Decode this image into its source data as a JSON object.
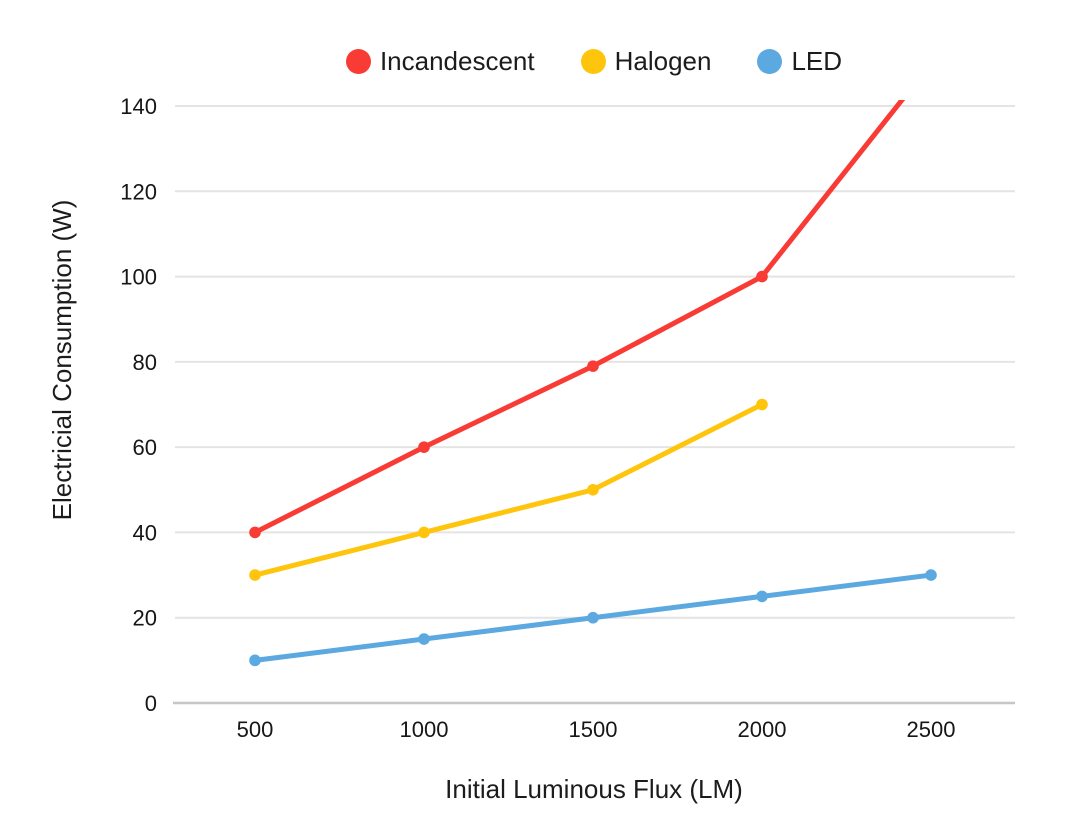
{
  "page": {
    "background_color": "#ffffff",
    "text_color": "#1c1c1c"
  },
  "legend": {
    "position": "top-center",
    "items": [
      {
        "label": "Incandescent",
        "color": "#F93B36"
      },
      {
        "label": "Halogen",
        "color": "#FFC40C"
      },
      {
        "label": "LED",
        "color": "#5BA9E0"
      }
    ]
  },
  "chart_data": {
    "type": "line",
    "title": "",
    "xlabel": "Initial Luminous Flux (LM)",
    "ylabel": "Electricial Consumption (W)",
    "x_ticks": [
      500,
      1000,
      1500,
      2000,
      2500
    ],
    "y_ticks": [
      0,
      20,
      40,
      60,
      80,
      100,
      120,
      140
    ],
    "xlim": [
      500,
      2500
    ],
    "ylim": [
      0,
      140
    ],
    "grid": "horizontal",
    "legend_position": "top",
    "series": [
      {
        "name": "Incandescent",
        "color": "#F93B36",
        "x": [
          500,
          1000,
          1500,
          2000,
          2500
        ],
        "values": [
          40,
          60,
          79,
          100,
          150
        ],
        "clipped_at_ymax": true
      },
      {
        "name": "Halogen",
        "color": "#FFC40C",
        "x": [
          500,
          1000,
          1500,
          2000
        ],
        "values": [
          30,
          40,
          50,
          70
        ],
        "clipped_at_ymax": false
      },
      {
        "name": "LED",
        "color": "#5BA9E0",
        "x": [
          500,
          1000,
          1500,
          2000,
          2500
        ],
        "values": [
          10,
          15,
          20,
          25,
          30
        ],
        "clipped_at_ymax": false
      }
    ],
    "style": {
      "gridline_color": "#E4E4E4",
      "baseline_color": "#C6C6C6",
      "line_width": 5,
      "marker_radius": 5.8
    }
  }
}
